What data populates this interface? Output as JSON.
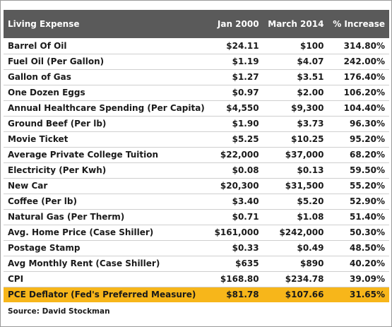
{
  "table": {
    "headers": [
      "Living Expense",
      "Jan 2000",
      "March 2014",
      "% Increase"
    ],
    "rows": [
      [
        "Barrel Of Oil",
        "$24.11",
        "$100",
        "314.80%"
      ],
      [
        "Fuel Oil (Per Gallon)",
        "$1.19",
        "$4.07",
        "242.00%"
      ],
      [
        "Gallon of Gas",
        "$1.27",
        "$3.51",
        "176.40%"
      ],
      [
        "One Dozen Eggs",
        "$0.97",
        "$2.00",
        "106.20%"
      ],
      [
        "Annual Healthcare Spending (Per Capita)",
        "$4,550",
        "$9,300",
        "104.40%"
      ],
      [
        "Ground Beef (Per lb)",
        "$1.90",
        "$3.73",
        "96.30%"
      ],
      [
        "Movie Ticket",
        "$5.25",
        "$10.25",
        "95.20%"
      ],
      [
        "Average Private College Tuition",
        "$22,000",
        "$37,000",
        "68.20%"
      ],
      [
        "Electricity (Per Kwh)",
        "$0.08",
        "$0.13",
        "59.50%"
      ],
      [
        "New Car",
        "$20,300",
        "$31,500",
        "55.20%"
      ],
      [
        "Coffee (Per lb)",
        "$3.40",
        "$5.20",
        "52.90%"
      ],
      [
        "Natural Gas (Per Therm)",
        "$0.71",
        "$1.08",
        "51.40%"
      ],
      [
        "Avg. Home Price (Case Shiller)",
        "$161,000",
        "$242,000",
        "50.30%"
      ],
      [
        "Postage Stamp",
        "$0.33",
        "$0.49",
        "48.50%"
      ],
      [
        "Avg Monthly Rent (Case Shiller)",
        "$635",
        "$890",
        "40.20%"
      ],
      [
        "CPI",
        "$168.80",
        "$234.78",
        "39.09%"
      ],
      [
        "PCE Deflator (Fed's Preferred Measure)",
        "$81.78",
        "$107.66",
        "31.65%"
      ]
    ],
    "highlight_row_color": "#f7b61a",
    "header_bg_color": "#5a5a5a"
  },
  "source": "Source: David Stockman"
}
